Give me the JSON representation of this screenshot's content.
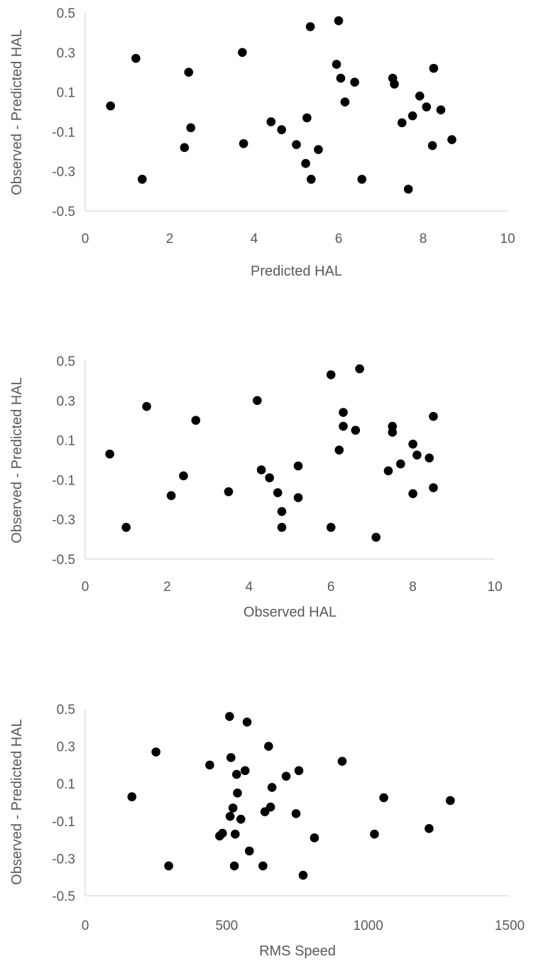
{
  "chart_data": [
    {
      "type": "scatter",
      "xlabel": "Predicted HAL",
      "ylabel": "Observed - Predicted HAL",
      "xlim": [
        0,
        10
      ],
      "ylim": [
        -0.5,
        0.5
      ],
      "x_ticks": [
        "0",
        "2",
        "4",
        "6",
        "8",
        "10"
      ],
      "y_ticks": [
        "0.5",
        "0.3",
        "0.1",
        "-0.1",
        "-0.3",
        "-0.5"
      ],
      "grid": false,
      "marker_color": "#000000",
      "points": [
        {
          "x": 0.6,
          "y": 0.03
        },
        {
          "x": 1.2,
          "y": 0.27
        },
        {
          "x": 1.35,
          "y": -0.34
        },
        {
          "x": 2.35,
          "y": -0.18
        },
        {
          "x": 2.45,
          "y": 0.2
        },
        {
          "x": 2.5,
          "y": -0.08
        },
        {
          "x": 3.72,
          "y": 0.3
        },
        {
          "x": 3.75,
          "y": -0.16
        },
        {
          "x": 4.4,
          "y": -0.05
        },
        {
          "x": 4.65,
          "y": -0.09
        },
        {
          "x": 5.0,
          "y": -0.165
        },
        {
          "x": 5.22,
          "y": -0.26
        },
        {
          "x": 5.25,
          "y": -0.03
        },
        {
          "x": 5.33,
          "y": 0.43
        },
        {
          "x": 5.35,
          "y": -0.34
        },
        {
          "x": 5.52,
          "y": -0.19
        },
        {
          "x": 5.95,
          "y": 0.24
        },
        {
          "x": 6.0,
          "y": 0.46
        },
        {
          "x": 6.05,
          "y": 0.17
        },
        {
          "x": 6.15,
          "y": 0.05
        },
        {
          "x": 6.38,
          "y": 0.15
        },
        {
          "x": 6.55,
          "y": -0.34
        },
        {
          "x": 7.28,
          "y": 0.17
        },
        {
          "x": 7.32,
          "y": 0.14
        },
        {
          "x": 7.5,
          "y": -0.055
        },
        {
          "x": 7.65,
          "y": -0.39
        },
        {
          "x": 7.75,
          "y": -0.02
        },
        {
          "x": 7.92,
          "y": 0.08
        },
        {
          "x": 8.08,
          "y": 0.025
        },
        {
          "x": 8.22,
          "y": -0.17
        },
        {
          "x": 8.25,
          "y": 0.22
        },
        {
          "x": 8.42,
          "y": 0.01
        },
        {
          "x": 8.68,
          "y": -0.14
        }
      ]
    },
    {
      "type": "scatter",
      "xlabel": "Observed HAL",
      "ylabel": "Observed - Predicted HAL",
      "xlim": [
        0,
        10
      ],
      "ylim": [
        -0.5,
        0.5
      ],
      "x_ticks": [
        "0",
        "2",
        "4",
        "6",
        "8",
        "10"
      ],
      "y_ticks": [
        "0.5",
        "0.3",
        "0.1",
        "-0.1",
        "-0.3",
        "-0.5"
      ],
      "grid": false,
      "marker_color": "#000000",
      "points": [
        {
          "x": 0.6,
          "y": 0.03
        },
        {
          "x": 1.0,
          "y": -0.34
        },
        {
          "x": 1.5,
          "y": 0.27
        },
        {
          "x": 2.1,
          "y": -0.18
        },
        {
          "x": 2.4,
          "y": -0.08
        },
        {
          "x": 2.7,
          "y": 0.2
        },
        {
          "x": 3.5,
          "y": -0.16
        },
        {
          "x": 4.2,
          "y": 0.3
        },
        {
          "x": 4.3,
          "y": -0.05
        },
        {
          "x": 4.5,
          "y": -0.09
        },
        {
          "x": 4.7,
          "y": -0.165
        },
        {
          "x": 4.8,
          "y": -0.26
        },
        {
          "x": 4.8,
          "y": -0.34
        },
        {
          "x": 5.2,
          "y": -0.03
        },
        {
          "x": 5.2,
          "y": -0.19
        },
        {
          "x": 6.0,
          "y": 0.43
        },
        {
          "x": 6.0,
          "y": -0.34
        },
        {
          "x": 6.2,
          "y": 0.05
        },
        {
          "x": 6.3,
          "y": 0.24
        },
        {
          "x": 6.3,
          "y": 0.17
        },
        {
          "x": 6.6,
          "y": 0.15
        },
        {
          "x": 6.7,
          "y": 0.46
        },
        {
          "x": 7.1,
          "y": -0.39
        },
        {
          "x": 7.4,
          "y": -0.055
        },
        {
          "x": 7.5,
          "y": 0.17
        },
        {
          "x": 7.5,
          "y": 0.14
        },
        {
          "x": 7.7,
          "y": -0.02
        },
        {
          "x": 8.0,
          "y": 0.08
        },
        {
          "x": 8.0,
          "y": -0.17
        },
        {
          "x": 8.1,
          "y": 0.025
        },
        {
          "x": 8.4,
          "y": 0.01
        },
        {
          "x": 8.5,
          "y": 0.22
        },
        {
          "x": 8.5,
          "y": -0.14
        }
      ]
    },
    {
      "type": "scatter",
      "xlabel": "RMS Speed",
      "ylabel": "Observed - Predicted HAL",
      "xlim": [
        0,
        1500
      ],
      "ylim": [
        -0.5,
        0.5
      ],
      "x_ticks": [
        "0",
        "500",
        "1000",
        "1500"
      ],
      "y_ticks": [
        "0.5",
        "0.3",
        "0.1",
        "-0.1",
        "-0.3",
        "-0.5"
      ],
      "grid": false,
      "marker_color": "#000000",
      "points": [
        {
          "x": 165,
          "y": 0.03
        },
        {
          "x": 250,
          "y": 0.27
        },
        {
          "x": 295,
          "y": -0.34
        },
        {
          "x": 440,
          "y": 0.2
        },
        {
          "x": 475,
          "y": -0.18
        },
        {
          "x": 485,
          "y": -0.165
        },
        {
          "x": 510,
          "y": 0.46
        },
        {
          "x": 512,
          "y": -0.075
        },
        {
          "x": 515,
          "y": 0.24
        },
        {
          "x": 522,
          "y": -0.03
        },
        {
          "x": 527,
          "y": -0.34
        },
        {
          "x": 530,
          "y": -0.17
        },
        {
          "x": 535,
          "y": 0.15
        },
        {
          "x": 538,
          "y": 0.05
        },
        {
          "x": 550,
          "y": -0.09
        },
        {
          "x": 565,
          "y": 0.17
        },
        {
          "x": 572,
          "y": 0.43
        },
        {
          "x": 580,
          "y": -0.26
        },
        {
          "x": 628,
          "y": -0.34
        },
        {
          "x": 635,
          "y": -0.05
        },
        {
          "x": 648,
          "y": 0.3
        },
        {
          "x": 655,
          "y": -0.025
        },
        {
          "x": 660,
          "y": 0.08
        },
        {
          "x": 710,
          "y": 0.14
        },
        {
          "x": 745,
          "y": -0.06
        },
        {
          "x": 755,
          "y": 0.17
        },
        {
          "x": 770,
          "y": -0.39
        },
        {
          "x": 810,
          "y": -0.19
        },
        {
          "x": 908,
          "y": 0.22
        },
        {
          "x": 1022,
          "y": -0.17
        },
        {
          "x": 1055,
          "y": 0.025
        },
        {
          "x": 1215,
          "y": -0.14
        },
        {
          "x": 1290,
          "y": 0.01
        }
      ]
    }
  ]
}
